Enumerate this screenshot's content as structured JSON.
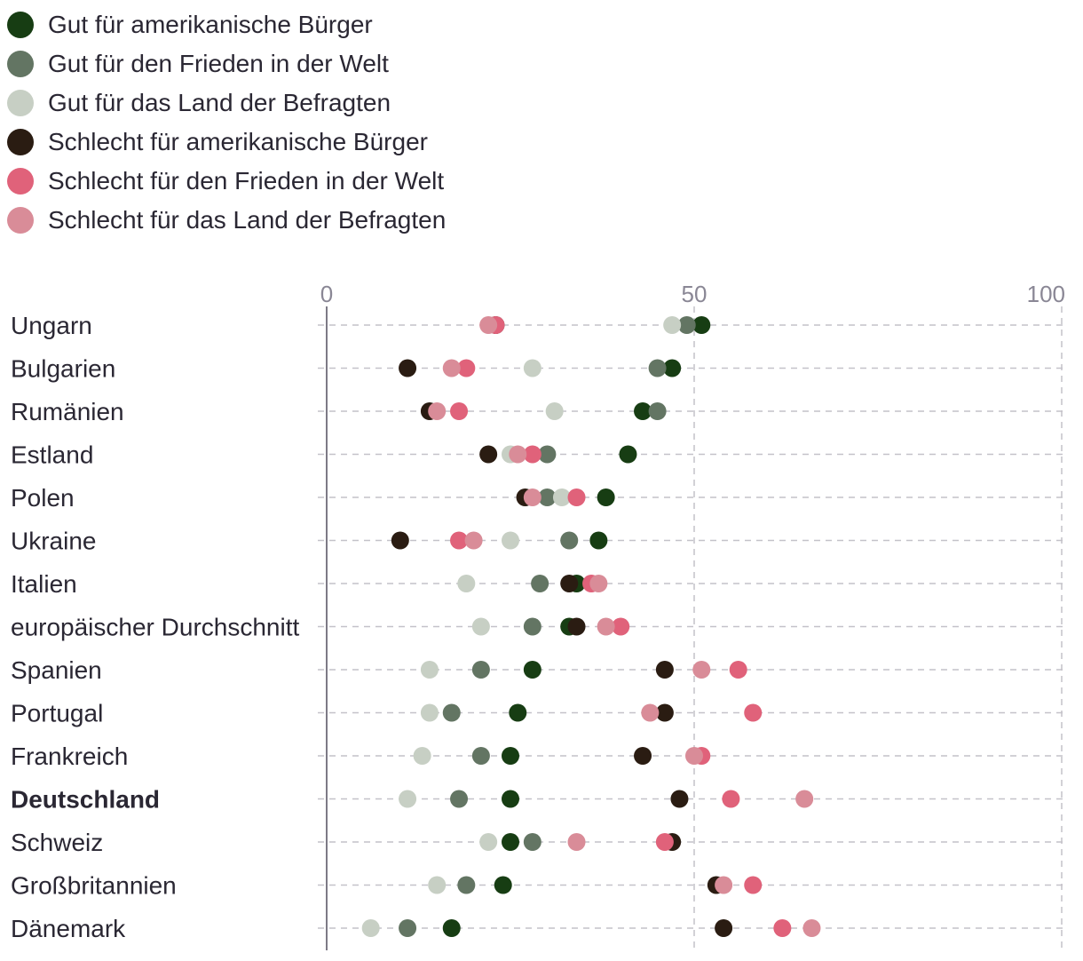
{
  "chart_data": {
    "type": "scatter",
    "title": "",
    "xlabel": "",
    "ylabel": "",
    "xlim": [
      0,
      100
    ],
    "x_ticks": [
      0,
      50,
      100
    ],
    "grid": true,
    "legend_position": "top-left",
    "series": [
      {
        "name": "Gut für amerikanische Bürger",
        "color": "#173d13"
      },
      {
        "name": "Gut für den Frieden in der Welt",
        "color": "#637563"
      },
      {
        "name": "Gut für das Land der Befragten",
        "color": "#c7cfc4"
      },
      {
        "name": "Schlecht für amerikanische Bürger",
        "color": "#2a1c12"
      },
      {
        "name": "Schlecht für den Frieden in der Welt",
        "color": "#e0627a"
      },
      {
        "name": "Schlecht für das Land der Befragten",
        "color": "#d98c98"
      }
    ],
    "categories": [
      {
        "label": "Ungarn",
        "bold": false,
        "values": [
          51,
          49,
          47,
          23,
          23,
          22
        ]
      },
      {
        "label": "Bulgarien",
        "bold": false,
        "values": [
          47,
          45,
          28,
          11,
          19,
          17
        ]
      },
      {
        "label": "Rumänien",
        "bold": false,
        "values": [
          43,
          45,
          31,
          14,
          18,
          15
        ]
      },
      {
        "label": "Estland",
        "bold": false,
        "values": [
          41,
          30,
          25,
          22,
          28,
          26
        ]
      },
      {
        "label": "Polen",
        "bold": false,
        "values": [
          38,
          30,
          32,
          27,
          34,
          28
        ]
      },
      {
        "label": "Ukraine",
        "bold": false,
        "values": [
          37,
          33,
          25,
          10,
          18,
          20
        ]
      },
      {
        "label": "Italien",
        "bold": false,
        "values": [
          34,
          29,
          19,
          33,
          36,
          37
        ]
      },
      {
        "label": "europäischer Durchschnitt",
        "bold": false,
        "values": [
          33,
          28,
          21,
          34,
          40,
          38
        ]
      },
      {
        "label": "Spanien",
        "bold": false,
        "values": [
          28,
          21,
          14,
          46,
          56,
          51
        ]
      },
      {
        "label": "Portugal",
        "bold": false,
        "values": [
          26,
          17,
          14,
          46,
          58,
          44
        ]
      },
      {
        "label": "Frankreich",
        "bold": false,
        "values": [
          25,
          21,
          13,
          43,
          51,
          50
        ]
      },
      {
        "label": "Deutschland",
        "bold": true,
        "values": [
          25,
          18,
          11,
          48,
          55,
          65
        ]
      },
      {
        "label": "Schweiz",
        "bold": false,
        "values": [
          25,
          28,
          22,
          47,
          46,
          34
        ]
      },
      {
        "label": "Großbritannien",
        "bold": false,
        "values": [
          24,
          19,
          15,
          53,
          58,
          54
        ]
      },
      {
        "label": "Dänemark",
        "bold": false,
        "values": [
          17,
          11,
          6,
          54,
          62,
          66
        ]
      }
    ]
  }
}
